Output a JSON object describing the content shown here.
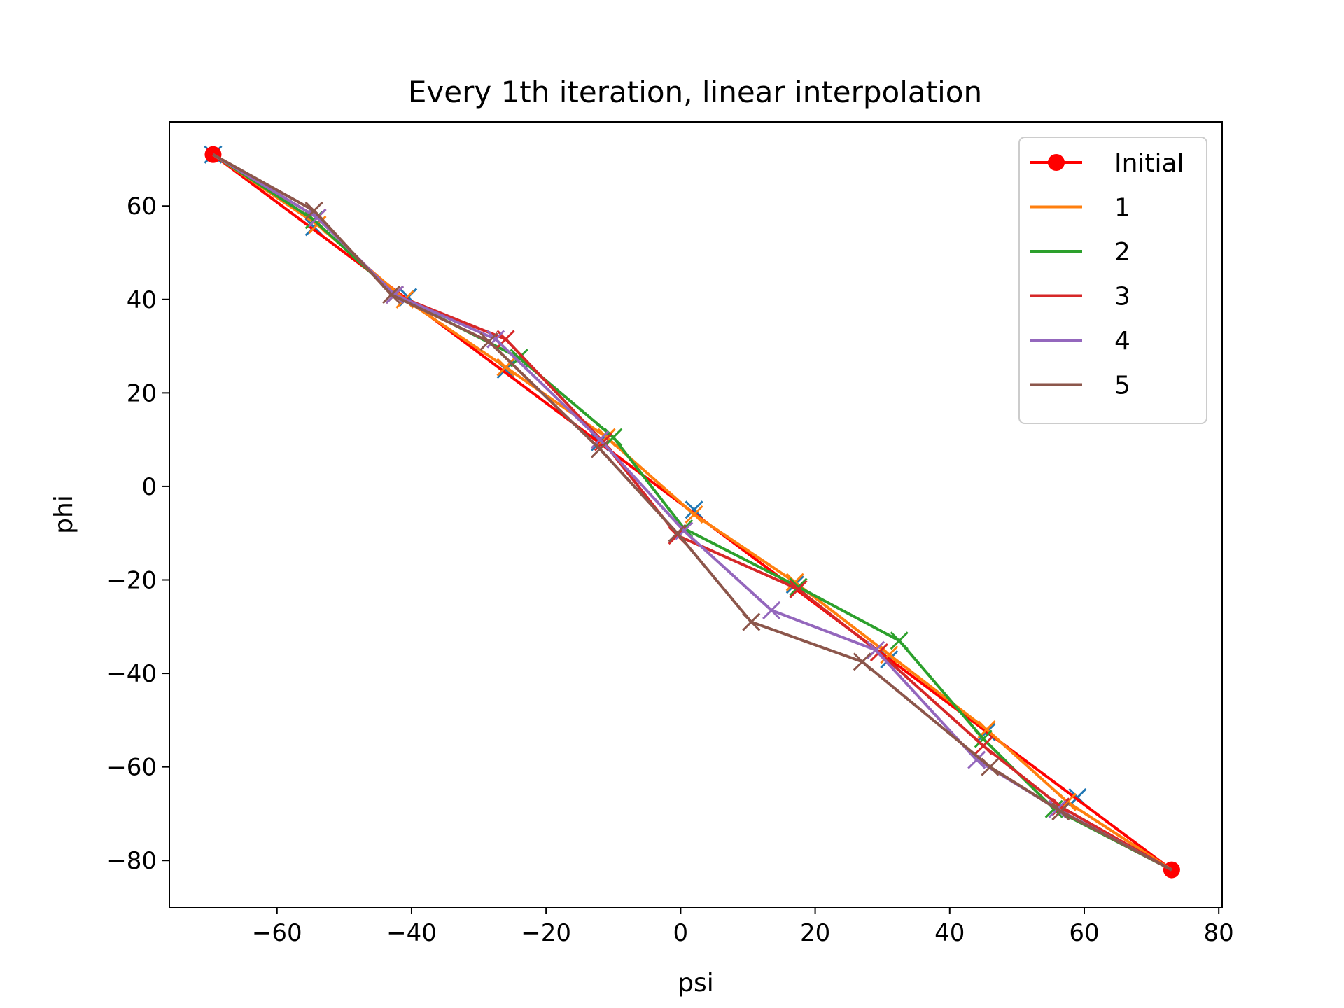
{
  "chart_data": {
    "type": "line",
    "title": "Every 1th iteration, linear interpolation",
    "xlabel": "psi",
    "ylabel": "phi",
    "xlim": [
      -76,
      80.5
    ],
    "ylim": [
      -90,
      78
    ],
    "xticks": [
      -60,
      -40,
      -20,
      0,
      20,
      40,
      60,
      80
    ],
    "yticks": [
      -80,
      -60,
      -40,
      -20,
      0,
      20,
      40,
      60
    ],
    "xtick_labels": [
      "−60",
      "−40",
      "−20",
      "0",
      "20",
      "40",
      "60",
      "80"
    ],
    "ytick_labels": [
      "−80",
      "−60",
      "−40",
      "−20",
      "0",
      "20",
      "40",
      "60"
    ],
    "grid": false,
    "legend_position": "top-right",
    "initial_points": {
      "x": [
        -69.5,
        -54.5,
        -40.5,
        -26.0,
        -12.0,
        2.0,
        17.0,
        31.0,
        45.5,
        59.0
      ],
      "y": [
        71.0,
        55.5,
        40.5,
        25.0,
        9.5,
        -5.0,
        -21.0,
        -37.0,
        -52.5,
        -66.5
      ],
      "color": "#1f77b4"
    },
    "series": [
      {
        "name": "Initial",
        "color": "#ff0000",
        "marker": "dot",
        "x": [
          -69.5,
          73.0
        ],
        "y": [
          71.0,
          -82.0
        ]
      },
      {
        "name": "1",
        "color": "#ff7f0e",
        "marker": "x",
        "x": [
          -69.5,
          -54.0,
          -41.0,
          -26.0,
          -11.0,
          2.0,
          17.0,
          31.0,
          45.5,
          57.5,
          73.0
        ],
        "y": [
          71.0,
          56.0,
          40.0,
          25.5,
          10.5,
          -6.0,
          -20.5,
          -36.0,
          -52.0,
          -67.5,
          -82.0
        ]
      },
      {
        "name": "2",
        "color": "#2ca02c",
        "marker": "x",
        "x": [
          -69.5,
          -54.5,
          -42.5,
          -24.0,
          -10.0,
          0.5,
          17.5,
          32.5,
          45.0,
          55.5,
          73.0
        ],
        "y": [
          71.0,
          57.0,
          41.0,
          27.5,
          10.5,
          -9.0,
          -21.5,
          -33.0,
          -54.0,
          -69.0,
          -82.0
        ]
      },
      {
        "name": "3",
        "color": "#d62728",
        "marker": "x",
        "x": [
          -69.5,
          -54.0,
          -42.5,
          -26.0,
          -11.5,
          -0.5,
          17.5,
          29.5,
          45.0,
          56.5,
          73.0
        ],
        "y": [
          71.0,
          57.5,
          41.0,
          31.5,
          9.5,
          -10.5,
          -22.0,
          -35.5,
          -55.5,
          -68.5,
          -82.0
        ]
      },
      {
        "name": "4",
        "color": "#9467bd",
        "marker": "x",
        "x": [
          -69.5,
          -54.0,
          -42.5,
          -27.5,
          -12.0,
          0.5,
          13.5,
          29.0,
          44.0,
          56.0,
          73.0
        ],
        "y": [
          71.0,
          57.5,
          41.0,
          31.5,
          10.0,
          -9.5,
          -26.5,
          -35.0,
          -58.5,
          -69.0,
          -82.0
        ]
      },
      {
        "name": "5",
        "color": "#8c564b",
        "marker": "x",
        "x": [
          -69.5,
          -54.5,
          -43.0,
          -28.5,
          -12.0,
          -0.5,
          10.5,
          27.0,
          46.0,
          56.5,
          73.0
        ],
        "y": [
          71.0,
          59.0,
          41.0,
          31.0,
          8.0,
          -10.0,
          -29.0,
          -37.5,
          -60.0,
          -69.5,
          -82.0
        ]
      }
    ]
  }
}
